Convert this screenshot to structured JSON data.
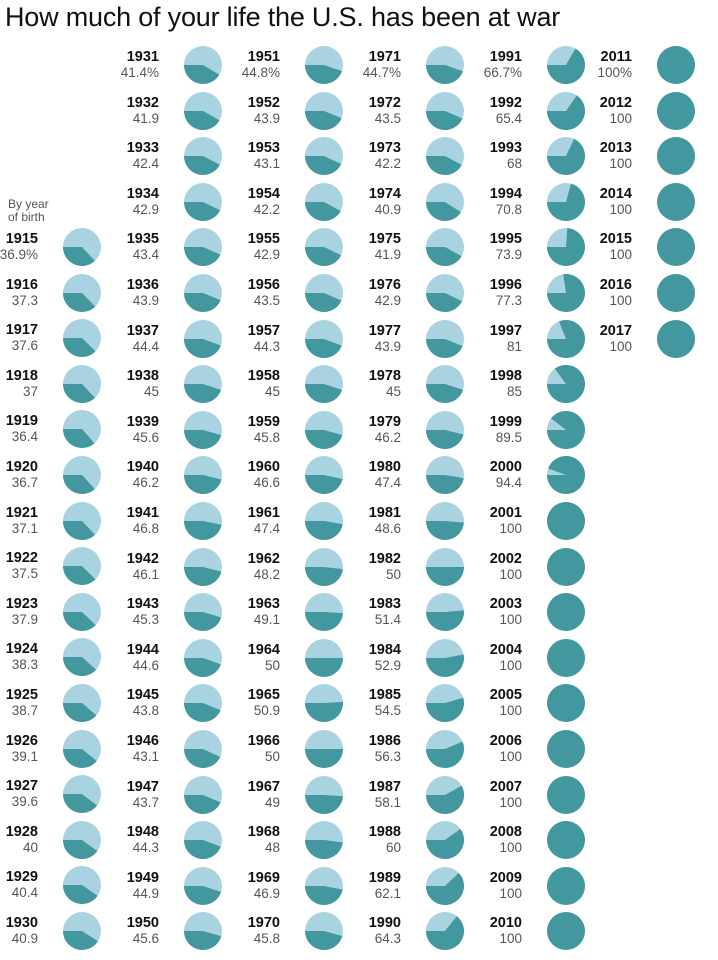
{
  "header": {
    "title": "How much of your life the U.S. has been at war",
    "note_line1": "By year",
    "note_line2": "of birth"
  },
  "colors": {
    "war": "#43989f",
    "peace": "#a9d3e0"
  },
  "chart_data": {
    "type": "pie",
    "title": "How much of your life the U.S. has been at war",
    "note": "By year of birth",
    "columns": [
      {
        "label_suffix": "",
        "entries": [
          {
            "year": "1915",
            "label": "36.9%",
            "value": 36.9
          },
          {
            "year": "1916",
            "label": "37.3",
            "value": 37.3
          },
          {
            "year": "1917",
            "label": "37.6",
            "value": 37.6
          },
          {
            "year": "1918",
            "label": "37",
            "value": 37
          },
          {
            "year": "1919",
            "label": "36.4",
            "value": 36.4
          },
          {
            "year": "1920",
            "label": "36.7",
            "value": 36.7
          },
          {
            "year": "1921",
            "label": "37.1",
            "value": 37.1
          },
          {
            "year": "1922",
            "label": "37.5",
            "value": 37.5
          },
          {
            "year": "1923",
            "label": "37.9",
            "value": 37.9
          },
          {
            "year": "1924",
            "label": "38.3",
            "value": 38.3
          },
          {
            "year": "1925",
            "label": "38.7",
            "value": 38.7
          },
          {
            "year": "1926",
            "label": "39.1",
            "value": 39.1
          },
          {
            "year": "1927",
            "label": "39.6",
            "value": 39.6
          },
          {
            "year": "1928",
            "label": "40",
            "value": 40
          },
          {
            "year": "1929",
            "label": "40.4",
            "value": 40.4
          },
          {
            "year": "1930",
            "label": "40.9",
            "value": 40.9
          }
        ]
      },
      {
        "entries": [
          {
            "year": "1931",
            "label": "41.4%",
            "value": 41.4
          },
          {
            "year": "1932",
            "label": "41.9",
            "value": 41.9
          },
          {
            "year": "1933",
            "label": "42.4",
            "value": 42.4
          },
          {
            "year": "1934",
            "label": "42.9",
            "value": 42.9
          },
          {
            "year": "1935",
            "label": "43.4",
            "value": 43.4
          },
          {
            "year": "1936",
            "label": "43.9",
            "value": 43.9
          },
          {
            "year": "1937",
            "label": "44.4",
            "value": 44.4
          },
          {
            "year": "1938",
            "label": "45",
            "value": 45
          },
          {
            "year": "1939",
            "label": "45.6",
            "value": 45.6
          },
          {
            "year": "1940",
            "label": "46.2",
            "value": 46.2
          },
          {
            "year": "1941",
            "label": "46.8",
            "value": 46.8
          },
          {
            "year": "1942",
            "label": "46.1",
            "value": 46.1
          },
          {
            "year": "1943",
            "label": "45.3",
            "value": 45.3
          },
          {
            "year": "1944",
            "label": "44.6",
            "value": 44.6
          },
          {
            "year": "1945",
            "label": "43.8",
            "value": 43.8
          },
          {
            "year": "1946",
            "label": "43.1",
            "value": 43.1
          },
          {
            "year": "1947",
            "label": "43.7",
            "value": 43.7
          },
          {
            "year": "1948",
            "label": "44.3",
            "value": 44.3
          },
          {
            "year": "1949",
            "label": "44.9",
            "value": 44.9
          },
          {
            "year": "1950",
            "label": "45.6",
            "value": 45.6
          }
        ]
      },
      {
        "entries": [
          {
            "year": "1951",
            "label": "44.8%",
            "value": 44.8
          },
          {
            "year": "1952",
            "label": "43.9",
            "value": 43.9
          },
          {
            "year": "1953",
            "label": "43.1",
            "value": 43.1
          },
          {
            "year": "1954",
            "label": "42.2",
            "value": 42.2
          },
          {
            "year": "1955",
            "label": "42.9",
            "value": 42.9
          },
          {
            "year": "1956",
            "label": "43.5",
            "value": 43.5
          },
          {
            "year": "1957",
            "label": "44.3",
            "value": 44.3
          },
          {
            "year": "1958",
            "label": "45",
            "value": 45
          },
          {
            "year": "1959",
            "label": "45.8",
            "value": 45.8
          },
          {
            "year": "1960",
            "label": "46.6",
            "value": 46.6
          },
          {
            "year": "1961",
            "label": "47.4",
            "value": 47.4
          },
          {
            "year": "1962",
            "label": "48.2",
            "value": 48.2
          },
          {
            "year": "1963",
            "label": "49.1",
            "value": 49.1
          },
          {
            "year": "1964",
            "label": "50",
            "value": 50
          },
          {
            "year": "1965",
            "label": "50.9",
            "value": 50.9
          },
          {
            "year": "1966",
            "label": "50",
            "value": 50
          },
          {
            "year": "1967",
            "label": "49",
            "value": 49
          },
          {
            "year": "1968",
            "label": "48",
            "value": 48
          },
          {
            "year": "1969",
            "label": "46.9",
            "value": 46.9
          },
          {
            "year": "1970",
            "label": "45.8",
            "value": 45.8
          }
        ]
      },
      {
        "entries": [
          {
            "year": "1971",
            "label": "44.7%",
            "value": 44.7
          },
          {
            "year": "1972",
            "label": "43.5",
            "value": 43.5
          },
          {
            "year": "1973",
            "label": "42.2",
            "value": 42.2
          },
          {
            "year": "1974",
            "label": "40.9",
            "value": 40.9
          },
          {
            "year": "1975",
            "label": "41.9",
            "value": 41.9
          },
          {
            "year": "1976",
            "label": "42.9",
            "value": 42.9
          },
          {
            "year": "1977",
            "label": "43.9",
            "value": 43.9
          },
          {
            "year": "1978",
            "label": "45",
            "value": 45
          },
          {
            "year": "1979",
            "label": "46.2",
            "value": 46.2
          },
          {
            "year": "1980",
            "label": "47.4",
            "value": 47.4
          },
          {
            "year": "1981",
            "label": "48.6",
            "value": 48.6
          },
          {
            "year": "1982",
            "label": "50",
            "value": 50
          },
          {
            "year": "1983",
            "label": "51.4",
            "value": 51.4
          },
          {
            "year": "1984",
            "label": "52.9",
            "value": 52.9
          },
          {
            "year": "1985",
            "label": "54.5",
            "value": 54.5
          },
          {
            "year": "1986",
            "label": "56.3",
            "value": 56.3
          },
          {
            "year": "1987",
            "label": "58.1",
            "value": 58.1
          },
          {
            "year": "1988",
            "label": "60",
            "value": 60
          },
          {
            "year": "1989",
            "label": "62.1",
            "value": 62.1
          },
          {
            "year": "1990",
            "label": "64.3",
            "value": 64.3
          }
        ]
      },
      {
        "entries": [
          {
            "year": "1991",
            "label": "66.7%",
            "value": 66.7
          },
          {
            "year": "1992",
            "label": "65.4",
            "value": 65.4
          },
          {
            "year": "1993",
            "label": "68",
            "value": 68
          },
          {
            "year": "1994",
            "label": "70.8",
            "value": 70.8
          },
          {
            "year": "1995",
            "label": "73.9",
            "value": 73.9
          },
          {
            "year": "1996",
            "label": "77.3",
            "value": 77.3
          },
          {
            "year": "1997",
            "label": "81",
            "value": 81
          },
          {
            "year": "1998",
            "label": "85",
            "value": 85
          },
          {
            "year": "1999",
            "label": "89.5",
            "value": 89.5
          },
          {
            "year": "2000",
            "label": "94.4",
            "value": 94.4
          },
          {
            "year": "2001",
            "label": "100",
            "value": 100
          },
          {
            "year": "2002",
            "label": "100",
            "value": 100
          },
          {
            "year": "2003",
            "label": "100",
            "value": 100
          },
          {
            "year": "2004",
            "label": "100",
            "value": 100
          },
          {
            "year": "2005",
            "label": "100",
            "value": 100
          },
          {
            "year": "2006",
            "label": "100",
            "value": 100
          },
          {
            "year": "2007",
            "label": "100",
            "value": 100
          },
          {
            "year": "2008",
            "label": "100",
            "value": 100
          },
          {
            "year": "2009",
            "label": "100",
            "value": 100
          },
          {
            "year": "2010",
            "label": "100",
            "value": 100
          }
        ]
      },
      {
        "entries": [
          {
            "year": "2011",
            "label": "100%",
            "value": 100
          },
          {
            "year": "2012",
            "label": "100",
            "value": 100
          },
          {
            "year": "2013",
            "label": "100",
            "value": 100
          },
          {
            "year": "2014",
            "label": "100",
            "value": 100
          },
          {
            "year": "2015",
            "label": "100",
            "value": 100
          },
          {
            "year": "2016",
            "label": "100",
            "value": 100
          },
          {
            "year": "2017",
            "label": "100",
            "value": 100
          }
        ]
      }
    ]
  }
}
